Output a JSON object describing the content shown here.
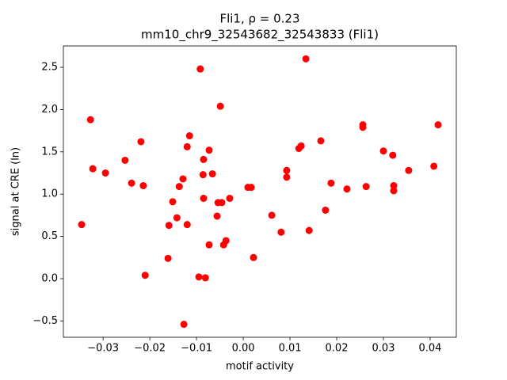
{
  "chart_data": {
    "type": "scatter",
    "title": "Fli1, ρ = 0.23",
    "subtitle": "mm10_chr9_32543682_32543833 (Fli1)",
    "x_label": "motif activity",
    "y_label": "signal at CRE (ln)",
    "color": "#ff0000",
    "xlim": [
      -0.0385,
      0.0456
    ],
    "ylim": [
      -0.693,
      2.753
    ],
    "xticks": [
      {
        "value": -0.03,
        "label": "−0.03"
      },
      {
        "value": -0.02,
        "label": "−0.02"
      },
      {
        "value": -0.01,
        "label": "−0.01"
      },
      {
        "value": 0,
        "label": "0.00"
      },
      0.01,
      0.02,
      0.03,
      0.04
    ],
    "yticks": [
      {
        "value": -0.5,
        "label": "−0.5"
      },
      {
        "value": 0,
        "label": "0.0"
      },
      0.5,
      {
        "value": 1,
        "label": "1.0"
      },
      1.5,
      {
        "value": 2,
        "label": "2.0"
      },
      2.5
    ],
    "x": [
      -0.0346,
      -0.0327,
      -0.0322,
      -0.0295,
      -0.0253,
      -0.0239,
      -0.0219,
      -0.0214,
      -0.021,
      -0.0161,
      -0.0159,
      -0.0151,
      -0.0142,
      -0.0137,
      -0.0129,
      -0.0127,
      -0.012,
      -0.012,
      -0.0115,
      -0.0095,
      -0.0092,
      -0.0086,
      -0.0085,
      -0.0085,
      -0.0081,
      -0.0073,
      -0.0073,
      -0.0066,
      -0.0056,
      -0.0054,
      -0.0049,
      -0.0046,
      -0.0042,
      -0.0037,
      -0.0029,
      0.001,
      0.0017,
      0.0022,
      0.0061,
      0.0081,
      0.0093,
      0.0093,
      0.0119,
      0.0124,
      0.0134,
      0.0141,
      0.0166,
      0.0176,
      0.0188,
      0.0222,
      0.0256,
      0.0256,
      0.0263,
      0.03,
      0.032,
      0.0322,
      0.0322,
      0.0354,
      0.0408,
      0.0417
    ],
    "values": [
      0.64,
      1.88,
      1.3,
      1.25,
      1.4,
      1.13,
      1.62,
      1.1,
      0.04,
      0.24,
      0.63,
      0.91,
      0.72,
      1.09,
      1.18,
      -0.54,
      1.56,
      0.64,
      1.69,
      0.02,
      2.48,
      1.23,
      1.41,
      0.95,
      0.01,
      1.52,
      0.4,
      1.24,
      0.74,
      0.9,
      2.04,
      0.9,
      0.4,
      0.45,
      0.95,
      1.08,
      1.08,
      0.25,
      0.75,
      0.55,
      1.28,
      1.2,
      1.54,
      1.57,
      2.6,
      0.57,
      1.63,
      0.81,
      1.13,
      1.06,
      1.82,
      1.79,
      1.09,
      1.51,
      1.46,
      1.1,
      1.04,
      1.28,
      1.33,
      1.82
    ]
  }
}
